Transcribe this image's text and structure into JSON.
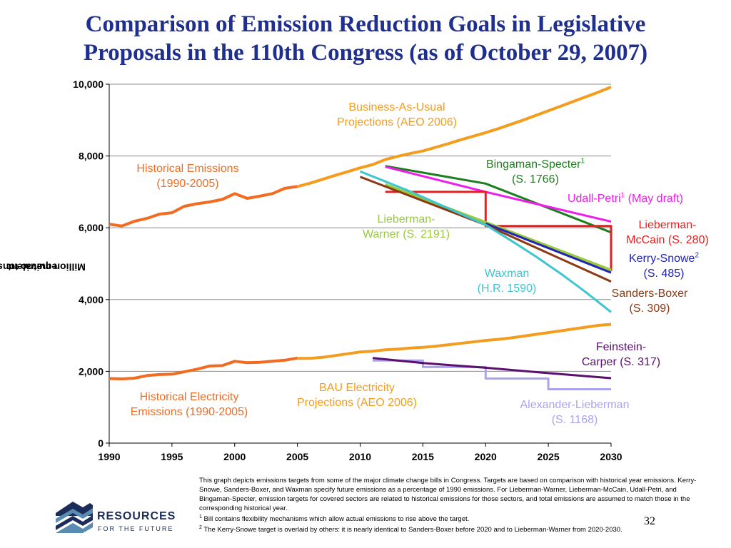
{
  "title_line1": "Comparison of Emission Reduction Goals in Legislative",
  "title_line2": "Proposals in the 110th Congress (as of October 29, 2007)",
  "chart_data": {
    "type": "line",
    "title": "Comparison of Emission Reduction Goals in Legislative Proposals in the 110th Congress (as of October 29, 2007)",
    "ylabel_main": "Million metric tons CO",
    "ylabel_sub": "2",
    "ylabel_tail": " equivalent",
    "xlim": [
      1990,
      2030
    ],
    "ylim": [
      0,
      10000
    ],
    "x_ticks": [
      1990,
      1995,
      2000,
      2005,
      2010,
      2015,
      2020,
      2025,
      2030
    ],
    "x_tick_labels": [
      "1990",
      "1995",
      "2000",
      "2005",
      "2010",
      "2015",
      "2020",
      "2025",
      "2030"
    ],
    "y_ticks": [
      0,
      2000,
      4000,
      6000,
      8000,
      10000
    ],
    "y_tick_labels": [
      "0",
      "2,000",
      "4,000",
      "6,000",
      "8,000",
      "10,000"
    ],
    "grid": "horizontal",
    "series": [
      {
        "id": "bau",
        "color": "#f39c1e",
        "width": 4,
        "x": [
          2005,
          2006,
          2007,
          2008,
          2009,
          2010,
          2011,
          2012,
          2013,
          2014,
          2015,
          2016,
          2017,
          2018,
          2019,
          2020,
          2021,
          2022,
          2023,
          2024,
          2025,
          2026,
          2027,
          2028,
          2029,
          2030
        ],
        "y": [
          7150,
          7240,
          7350,
          7460,
          7560,
          7670,
          7760,
          7900,
          7990,
          8070,
          8140,
          8240,
          8340,
          8450,
          8550,
          8650,
          8760,
          8880,
          9000,
          9130,
          9260,
          9390,
          9520,
          9650,
          9780,
          9920
        ]
      },
      {
        "id": "historical",
        "color": "#f26b21",
        "width": 4,
        "x": [
          1990,
          1991,
          1992,
          1993,
          1994,
          1995,
          1996,
          1997,
          1998,
          1999,
          2000,
          2001,
          2002,
          2003,
          2004,
          2005
        ],
        "y": [
          6100,
          6050,
          6180,
          6260,
          6380,
          6420,
          6600,
          6670,
          6720,
          6790,
          6950,
          6820,
          6880,
          6950,
          7100,
          7150
        ]
      },
      {
        "id": "bau-electricity",
        "color": "#f39c1e",
        "width": 4,
        "x": [
          2005,
          2006,
          2007,
          2008,
          2009,
          2010,
          2011,
          2012,
          2013,
          2014,
          2015,
          2016,
          2017,
          2018,
          2019,
          2020,
          2021,
          2022,
          2023,
          2024,
          2025,
          2026,
          2027,
          2028,
          2029,
          2030
        ],
        "y": [
          2360,
          2360,
          2390,
          2440,
          2490,
          2540,
          2560,
          2600,
          2620,
          2650,
          2670,
          2700,
          2740,
          2780,
          2820,
          2860,
          2890,
          2930,
          2980,
          3030,
          3080,
          3130,
          3180,
          3230,
          3280,
          3310
        ]
      },
      {
        "id": "historical-electricity",
        "color": "#f26b21",
        "width": 4,
        "x": [
          1990,
          1991,
          1992,
          1993,
          1994,
          1995,
          1996,
          1997,
          1998,
          1999,
          2000,
          2001,
          2002,
          2003,
          2004,
          2005
        ],
        "y": [
          1800,
          1790,
          1810,
          1880,
          1910,
          1920,
          1990,
          2060,
          2150,
          2160,
          2280,
          2240,
          2250,
          2280,
          2310,
          2370
        ]
      },
      {
        "id": "bingaman-specter",
        "color": "#1e7d1e",
        "width": 3,
        "x": [
          2012,
          2020,
          2030
        ],
        "y": [
          7720,
          7230,
          5870
        ]
      },
      {
        "id": "udall-petri",
        "color": "#ee1de9",
        "width": 3,
        "x": [
          2012,
          2020,
          2030
        ],
        "y": [
          7700,
          7000,
          6170
        ]
      },
      {
        "id": "lieberman-mccain",
        "color": "#ee1c1c",
        "width": 3,
        "x": [
          2012,
          2020,
          2020,
          2030,
          2030
        ],
        "y": [
          7000,
          7000,
          6050,
          6050,
          4800
        ]
      },
      {
        "id": "lieberman-warner",
        "color": "#99c93c",
        "width": 4,
        "x": [
          2012,
          2020,
          2030
        ],
        "y": [
          7200,
          6150,
          4820
        ]
      },
      {
        "id": "kerry-snowe",
        "color": "#1f24b8",
        "width": 3,
        "x": [
          2020,
          2030
        ],
        "y": [
          6120,
          4750
        ]
      },
      {
        "id": "sanders-boxer",
        "color": "#8b3a14",
        "width": 3,
        "x": [
          2010,
          2020,
          2030
        ],
        "y": [
          7420,
          6080,
          4500
        ]
      },
      {
        "id": "waxman",
        "color": "#3dc6cf",
        "width": 3,
        "x": [
          2010,
          2012,
          2014,
          2016,
          2018,
          2020,
          2022,
          2024,
          2026,
          2028,
          2030
        ],
        "y": [
          7570,
          7290,
          7010,
          6700,
          6390,
          6080,
          5650,
          5200,
          4720,
          4200,
          3650
        ]
      },
      {
        "id": "alexander-lieberman",
        "color": "#a9a3f0",
        "width": 3,
        "x": [
          2011,
          2015,
          2015,
          2020,
          2020,
          2025,
          2025,
          2030
        ],
        "y": [
          2300,
          2300,
          2120,
          2120,
          1800,
          1800,
          1500,
          1500
        ]
      },
      {
        "id": "feinstein-carper",
        "color": "#5b0f6e",
        "width": 3,
        "x": [
          2011,
          2015,
          2020,
          2025,
          2030
        ],
        "y": [
          2370,
          2230,
          2100,
          1950,
          1810
        ]
      }
    ]
  },
  "labels": {
    "bau": [
      "Business-As-Usual",
      "Projections (AEO 2006)"
    ],
    "historical": [
      "Historical Emissions",
      "(1990-2005)"
    ],
    "bingaman": [
      "Bingaman-Specter",
      "1",
      "(S. 1766)"
    ],
    "udall": [
      "Udall-Petri",
      "1",
      " (May draft)"
    ],
    "lieberman_warner": [
      "Lieberman-",
      "Warner (S. 2191)"
    ],
    "lieberman_mccain": [
      "Lieberman-",
      "McCain (S. 280)"
    ],
    "kerry_snowe": [
      "Kerry-Snowe",
      "2",
      "(S. 485)"
    ],
    "waxman": [
      "Waxman",
      "(H.R. 1590)"
    ],
    "sanders_boxer": [
      "Sanders-Boxer",
      "(S. 309)"
    ],
    "feinstein": [
      "Feinstein-",
      "Carper (S. 317)"
    ],
    "hist_elec": [
      "Historical Electricity",
      "Emissions (1990-2005)"
    ],
    "bau_elec": [
      "BAU Electricity",
      "Projections (AEO 2006)"
    ],
    "alexander": [
      "Alexander-Lieberman",
      "(S. 1168)"
    ]
  },
  "label_colors": {
    "bau": "#f39c1e",
    "historical": "#f26b21",
    "bingaman": "#1e7d1e",
    "udall": "#ee1de9",
    "lieberman_warner": "#99c93c",
    "lieberman_mccain": "#ee1c1c",
    "kerry_snowe": "#1f24b8",
    "waxman": "#3dc6cf",
    "sanders_boxer": "#8b3a14",
    "feinstein": "#5b0f6e",
    "hist_elec": "#f26b21",
    "bau_elec": "#f39c1e",
    "alexander": "#a9a3f0"
  },
  "notes": {
    "main": "This graph depicts emissions targets from some of the major climate change bills in Congress.  Targets are based on comparison with historical year emissions.  Kerry-Snowe, Sanders-Boxer, and Waxman specify future emissions as a percentage of 1990 emissions.  For Lieberman-Warner, Lieberman-McCain, Udall-Petri, and Bingaman-Specter, emission targets for covered sectors are related to historical emissions for those sectors, and total emissions are assumed to match those in the corresponding historical year.",
    "fn1_mark": "1",
    "fn1": " Bill contains flexibility mechanisms which allow actual emissions to rise above the target.",
    "fn2_mark": "2",
    "fn2": " The Kerry-Snowe target is overlaid by others: it is nearly identical to Sanders-Boxer before 2020 and to Lieberman-Warner from 2020-2030."
  },
  "page_number": "32",
  "logo": {
    "name": "RESOURCES",
    "sub": "FOR THE FUTURE"
  }
}
